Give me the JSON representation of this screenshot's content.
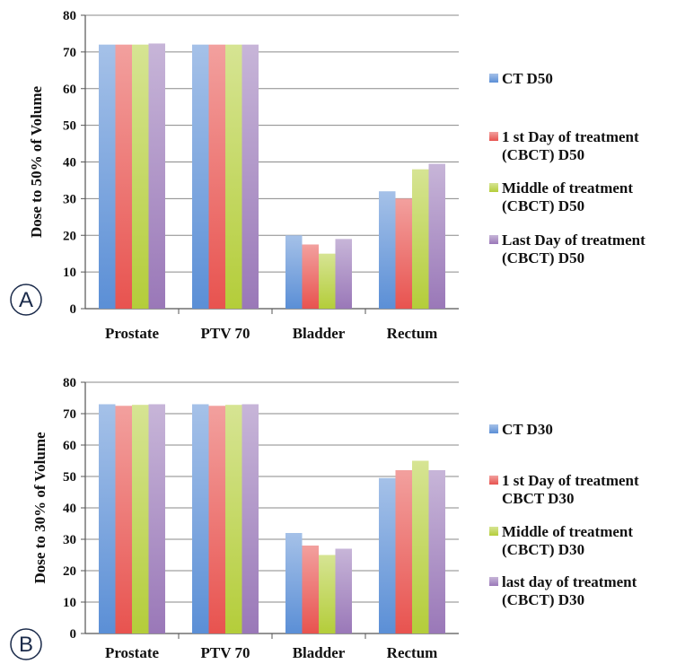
{
  "colors": {
    "ct": "#5b8fd6",
    "day1": "#e8534f",
    "middle": "#b4cd3a",
    "last": "#9a78b8"
  },
  "chart_data": [
    {
      "type": "bar",
      "panel_label": "A",
      "categories": [
        "Prostate",
        "PTV 70",
        "Bladder",
        "Rectum"
      ],
      "ylabel": "Dose to 50% of Volume",
      "ylim": [
        0,
        80
      ],
      "yticks": [
        "0",
        "10",
        "20",
        "30",
        "40",
        "50",
        "60",
        "70",
        "80"
      ],
      "grid": true,
      "legend_position": "right",
      "series": [
        {
          "name": "CT D50",
          "name_lines": [
            "CT D50"
          ],
          "color_key": "ct",
          "values": [
            72,
            72,
            20,
            32
          ]
        },
        {
          "name": "1 st Day of treatment (CBCT) D50",
          "name_lines": [
            "1 st Day of treatment",
            "(CBCT) D50"
          ],
          "color_key": "day1",
          "values": [
            72,
            72,
            17.5,
            30
          ]
        },
        {
          "name": "Middle of treatment (CBCT) D50",
          "name_lines": [
            "Middle of treatment",
            "(CBCT) D50"
          ],
          "color_key": "middle",
          "values": [
            72,
            72,
            15,
            38
          ]
        },
        {
          "name": "Last Day of treatment (CBCT) D50",
          "name_lines": [
            "Last Day of treatment",
            "(CBCT) D50"
          ],
          "color_key": "last",
          "values": [
            72.3,
            72,
            19,
            39.5
          ]
        }
      ]
    },
    {
      "type": "bar",
      "panel_label": "B",
      "categories": [
        "Prostate",
        "PTV 70",
        "Bladder",
        "Rectum"
      ],
      "ylabel": "Dose to 30% of Volume",
      "ylim": [
        0,
        80
      ],
      "yticks": [
        "0",
        "10",
        "20",
        "30",
        "40",
        "50",
        "60",
        "70",
        "80"
      ],
      "grid": true,
      "legend_position": "right",
      "series": [
        {
          "name": "CT D30",
          "name_lines": [
            "CT D30"
          ],
          "color_key": "ct",
          "values": [
            73,
            73,
            32,
            49.5
          ]
        },
        {
          "name": "1 st Day of treatment CBCT D30",
          "name_lines": [
            "1 st Day of treatment",
            "CBCT D30"
          ],
          "color_key": "day1",
          "values": [
            72.5,
            72.5,
            28,
            52
          ]
        },
        {
          "name": "Middle of treatment (CBCT) D30",
          "name_lines": [
            "Middle of treatment",
            "(CBCT) D30"
          ],
          "color_key": "middle",
          "values": [
            72.8,
            72.8,
            25,
            55
          ]
        },
        {
          "name": "last day of treatment (CBCT) D30",
          "name_lines": [
            "last day of treatment",
            "(CBCT) D30"
          ],
          "color_key": "last",
          "values": [
            73,
            73,
            27,
            52
          ]
        }
      ]
    }
  ]
}
